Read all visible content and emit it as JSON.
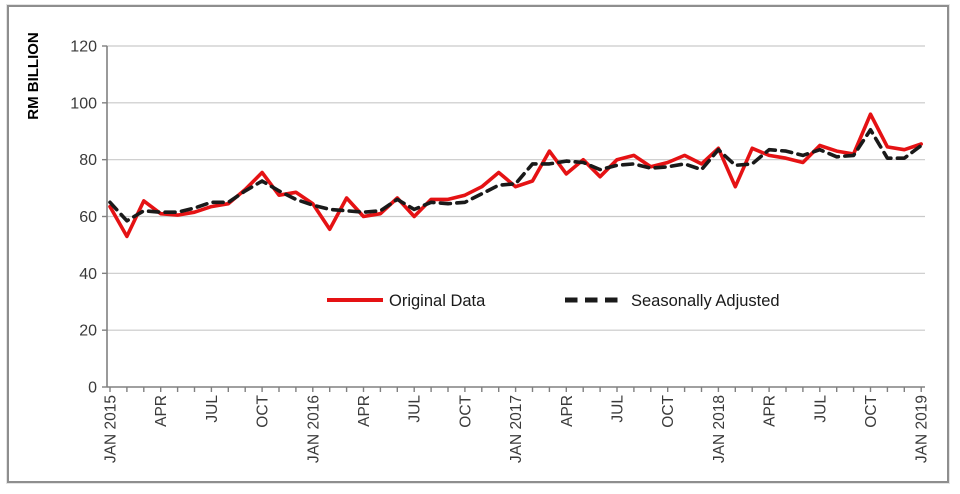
{
  "chart_data": {
    "type": "line",
    "title": "",
    "ylabel": "RM BILLION",
    "xlabel": "",
    "ylim": [
      0,
      120
    ],
    "yticks": [
      0,
      20,
      40,
      60,
      80,
      100,
      120
    ],
    "grid": true,
    "n_points": 49,
    "x_tick_every": 3,
    "x_tick_labels": [
      "JAN 2015",
      "APR",
      "JUL",
      "OCT",
      "JAN 2016",
      "APR",
      "JUL",
      "OCT",
      "JAN 2017",
      "APR",
      "JUL",
      "OCT",
      "JAN 2018",
      "APR",
      "JUL",
      "OCT",
      "JAN 2019"
    ],
    "legend_position": "inside-center",
    "series": [
      {
        "name": "Original Data",
        "style": "solid",
        "color": "#e51214",
        "values": [
          63.5,
          53,
          65.5,
          61,
          60.5,
          61.5,
          63.5,
          64.5,
          69.5,
          75.5,
          67.5,
          68.5,
          64.5,
          55.5,
          66.5,
          60,
          61,
          66.5,
          60,
          66,
          66,
          67.5,
          70.5,
          75.5,
          70.5,
          72.5,
          83,
          75,
          80,
          74,
          80,
          81.5,
          77.5,
          79,
          81.5,
          78.5,
          84,
          70.5,
          84,
          81.5,
          80.5,
          79,
          85,
          83,
          82,
          96,
          84.5,
          83.5,
          85.5
        ]
      },
      {
        "name": "Seasonally Adjusted",
        "style": "dashed",
        "color": "#1a1a1a",
        "values": [
          65,
          58.5,
          62,
          61.5,
          61.5,
          63,
          65,
          65,
          69,
          72.5,
          69,
          66,
          64,
          62.5,
          62,
          61.5,
          62,
          66,
          62.5,
          65,
          64.5,
          65,
          68,
          71,
          71.5,
          78.5,
          78.5,
          79.5,
          79,
          76.5,
          78,
          78.5,
          77,
          77.5,
          78.5,
          76.5,
          83.5,
          78,
          78.5,
          83.5,
          83,
          81.5,
          83.5,
          81,
          81.5,
          90.5,
          80.5,
          80.5,
          85
        ]
      }
    ],
    "colors": {
      "grid": "#c9c9c9",
      "axis": "#808080",
      "tick_label": "#3a3a3a",
      "frame_border": "#8e8e8e",
      "background": "#ffffff"
    }
  }
}
